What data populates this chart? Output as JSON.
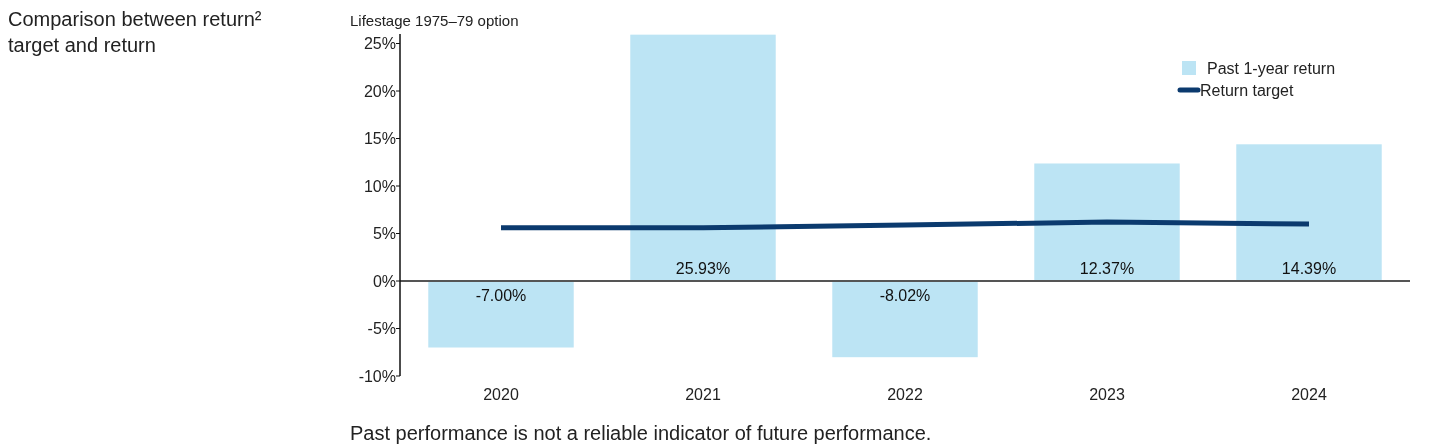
{
  "chart_data": {
    "type": "bar",
    "title": "Comparison between return² target and return",
    "subtitle": "Lifestage 1975–79 option",
    "annotations": [
      "Past performance is not a reliable indicator of future performance."
    ],
    "categories": [
      "2020",
      "2021",
      "2022",
      "2023",
      "2024"
    ],
    "series": [
      {
        "name": "Past 1-year return",
        "color": "#bce4f4",
        "values": [
          -7.0,
          25.93,
          -8.02,
          12.37,
          14.39
        ],
        "value_labels": [
          "-7.00%",
          "25.93%",
          "-8.02%",
          "12.37%",
          "14.39%"
        ]
      },
      {
        "name": "Return target",
        "type": "line",
        "color": "#0b3a6e",
        "values": [
          5.6,
          5.6,
          5.9,
          6.2,
          6.0
        ]
      }
    ],
    "ylim": [
      -10,
      26
    ],
    "yticks": [
      {
        "value": -10,
        "label": "-10%"
      },
      {
        "value": -5,
        "label": "-5%"
      },
      {
        "value": 0,
        "label": "0%"
      },
      {
        "value": 5,
        "label": "5%"
      },
      {
        "value": 10,
        "label": "10%"
      },
      {
        "value": 15,
        "label": "15%"
      },
      {
        "value": 20,
        "label": "20%"
      },
      {
        "value": 25,
        "label": "25%"
      }
    ],
    "legend": "top right"
  }
}
